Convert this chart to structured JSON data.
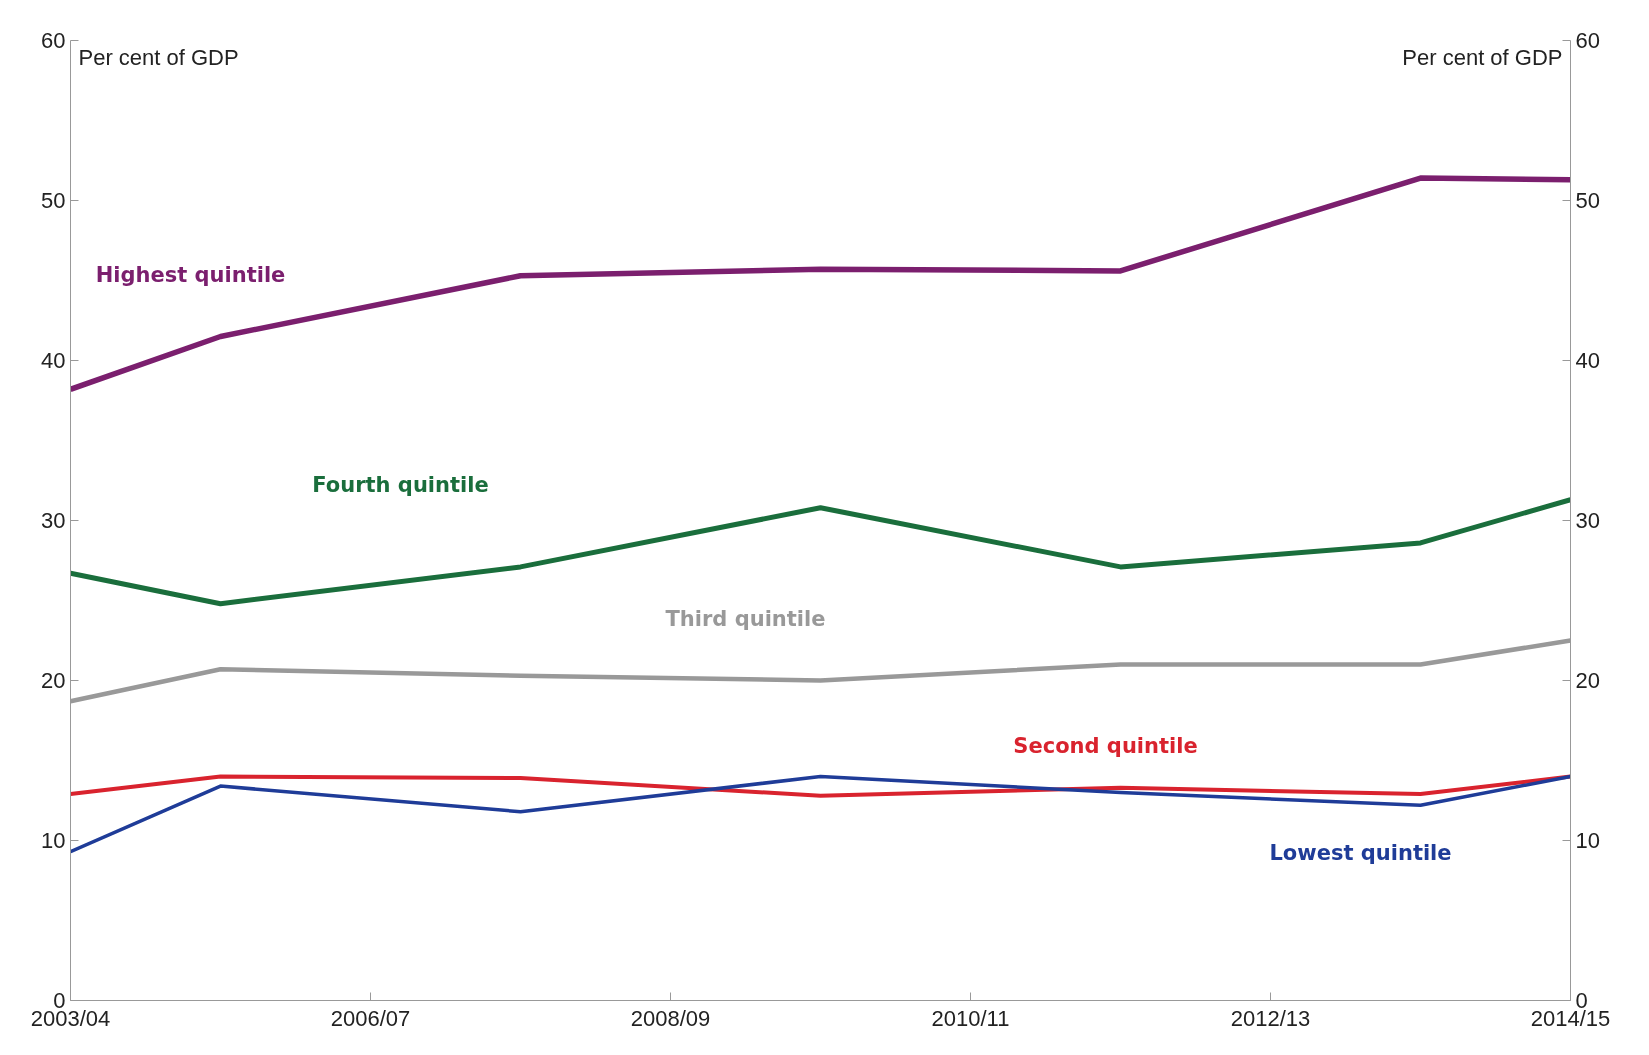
{
  "chart_data": {
    "type": "line",
    "categories": [
      "2003/04",
      null,
      "2006/07",
      null,
      "2008/09",
      null,
      "2010/11",
      null,
      "2012/13",
      null,
      "2014/15"
    ],
    "ylim": [
      0,
      60
    ],
    "yticks": [
      0,
      10,
      20,
      30,
      40,
      50,
      60
    ],
    "y2lim": [
      0,
      60
    ],
    "y2ticks": [
      0,
      10,
      20,
      30,
      40,
      50,
      60
    ],
    "ylabel": "Per cent of GDP",
    "y2label": "Per cent of GDP",
    "grid": false,
    "marker": "none",
    "line_style": "solid",
    "series": [
      {
        "name": "Highest quintile",
        "color": "#7b1f6e",
        "values": [
          38.2,
          41.5,
          null,
          45.3,
          null,
          45.7,
          null,
          45.6,
          null,
          51.4,
          51.3
        ]
      },
      {
        "name": "Fourth quintile",
        "color": "#1a6e3c",
        "values": [
          26.7,
          24.8,
          null,
          27.1,
          null,
          30.8,
          null,
          27.1,
          null,
          28.6,
          31.3
        ]
      },
      {
        "name": "Third quintile",
        "color": "#999999",
        "values": [
          18.7,
          20.7,
          null,
          20.3,
          null,
          20.0,
          null,
          21.0,
          null,
          21.0,
          22.5
        ]
      },
      {
        "name": "Second quintile",
        "color": "#d9232e",
        "values": [
          12.9,
          14.0,
          null,
          13.9,
          null,
          12.8,
          null,
          13.3,
          null,
          12.9,
          14.0
        ]
      },
      {
        "name": "Lowest quintile",
        "color": "#1f3c98",
        "values": [
          9.3,
          13.4,
          null,
          11.8,
          null,
          14.0,
          null,
          13.0,
          null,
          12.2,
          14.0
        ]
      }
    ]
  }
}
